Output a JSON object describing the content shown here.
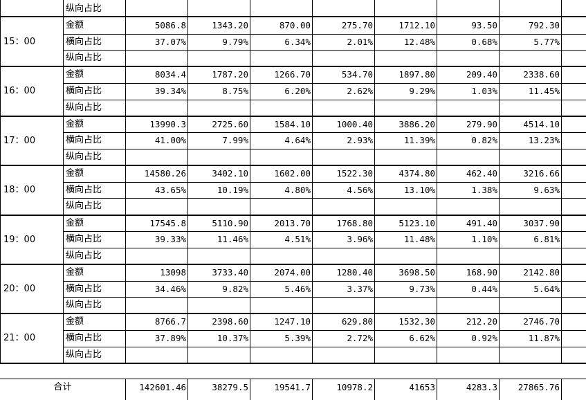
{
  "spreadsheet": {
    "row_labels": {
      "amount": "金额",
      "h_ratio": "横向占比",
      "v_ratio": "纵向占比"
    },
    "top_partial_label": "纵向占比",
    "hours": [
      {
        "time": "15：00",
        "amount": [
          "5086.8",
          "1343.20",
          "870.00",
          "275.70",
          "1712.10",
          "93.50",
          "792.30"
        ],
        "h_ratio": [
          "37.07%",
          "9.79%",
          "6.34%",
          "2.01%",
          "12.48%",
          "0.68%",
          "5.77%"
        ],
        "v_ratio": [
          "",
          "",
          "",
          "",
          "",
          "",
          ""
        ]
      },
      {
        "time": "16：00",
        "amount": [
          "8034.4",
          "1787.20",
          "1266.70",
          "534.70",
          "1897.80",
          "209.40",
          "2338.60"
        ],
        "h_ratio": [
          "39.34%",
          "8.75%",
          "6.20%",
          "2.62%",
          "9.29%",
          "1.03%",
          "11.45%"
        ],
        "v_ratio": [
          "",
          "",
          "",
          "",
          "",
          "",
          ""
        ]
      },
      {
        "time": "17：00",
        "amount": [
          "13990.3",
          "2725.60",
          "1584.10",
          "1000.40",
          "3886.20",
          "279.90",
          "4514.10"
        ],
        "h_ratio": [
          "41.00%",
          "7.99%",
          "4.64%",
          "2.93%",
          "11.39%",
          "0.82%",
          "13.23%"
        ],
        "v_ratio": [
          "",
          "",
          "",
          "",
          "",
          "",
          ""
        ]
      },
      {
        "time": "18：00",
        "amount": [
          "14580.26",
          "3402.10",
          "1602.00",
          "1522.30",
          "4374.80",
          "462.40",
          "3216.66"
        ],
        "h_ratio": [
          "43.65%",
          "10.19%",
          "4.80%",
          "4.56%",
          "13.10%",
          "1.38%",
          "9.63%"
        ],
        "v_ratio": [
          "",
          "",
          "",
          "",
          "",
          "",
          ""
        ]
      },
      {
        "time": "19：00",
        "amount": [
          "17545.8",
          "5110.90",
          "2013.70",
          "1768.80",
          "5123.10",
          "491.40",
          "3037.90"
        ],
        "h_ratio": [
          "39.33%",
          "11.46%",
          "4.51%",
          "3.96%",
          "11.48%",
          "1.10%",
          "6.81%"
        ],
        "v_ratio": [
          "",
          "",
          "",
          "",
          "",
          "",
          ""
        ]
      },
      {
        "time": "20：00",
        "amount": [
          "13098",
          "3733.40",
          "2074.00",
          "1280.40",
          "3698.50",
          "168.90",
          "2142.80"
        ],
        "h_ratio": [
          "34.46%",
          "9.82%",
          "5.46%",
          "3.37%",
          "9.73%",
          "0.44%",
          "5.64%"
        ],
        "v_ratio": [
          "",
          "",
          "",
          "",
          "",
          "",
          ""
        ]
      },
      {
        "time": "21：00",
        "amount": [
          "8766.7",
          "2398.60",
          "1247.10",
          "629.80",
          "1532.30",
          "212.20",
          "2746.70"
        ],
        "h_ratio": [
          "37.89%",
          "10.37%",
          "5.39%",
          "2.72%",
          "6.62%",
          "0.92%",
          "11.87%"
        ],
        "v_ratio": [
          "",
          "",
          "",
          "",
          "",
          "",
          ""
        ]
      }
    ],
    "total": {
      "label": "合计",
      "values": [
        "142601.46",
        "38279.5",
        "19541.7",
        "10978.2",
        "41653",
        "4283.3",
        "27865.76"
      ]
    }
  }
}
